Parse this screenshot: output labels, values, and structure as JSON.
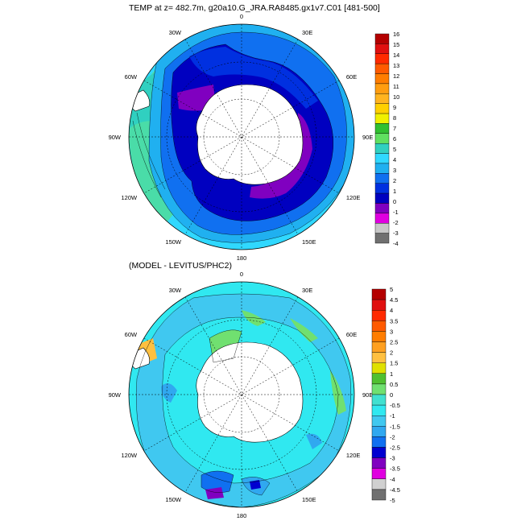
{
  "panels": [
    {
      "title": "TEMP at z= 482.7m, g20a10.G_JRA.RA8485.gx1v7.C01 [481-500]",
      "lon_labels": [
        "0",
        "30E",
        "60E",
        "90E",
        "120E",
        "150E",
        "180",
        "150W",
        "120W",
        "90W",
        "60W",
        "30W"
      ],
      "colorbar": {
        "levels": [
          "16",
          "15",
          "14",
          "13",
          "12",
          "11",
          "10",
          "9",
          "8",
          "7",
          "6",
          "5",
          "4",
          "3",
          "2",
          "1",
          "0",
          "-1",
          "-2",
          "-3",
          "-4"
        ],
        "colors": [
          "#b40000",
          "#e01010",
          "#ff2a00",
          "#ff5a00",
          "#ff7d00",
          "#ff9d10",
          "#ffb420",
          "#ffd000",
          "#f0f000",
          "#30c030",
          "#60e060",
          "#30d0c0",
          "#30d8ff",
          "#20b0f0",
          "#1070f0",
          "#0030e0",
          "#0000c0",
          "#8000c0",
          "#e000e0",
          "#c8c8c8",
          "#707070"
        ]
      }
    },
    {
      "title": "(MODEL - LEVITUS/PHC2)",
      "lon_labels": [
        "0",
        "30E",
        "60E",
        "90E",
        "120E",
        "150E",
        "180",
        "150W",
        "120W",
        "90W",
        "60W",
        "30W"
      ],
      "colorbar": {
        "levels": [
          "5",
          "4.5",
          "4",
          "3.5",
          "3",
          "2.5",
          "2",
          "1.5",
          "1",
          "0.5",
          "0",
          "-0.5",
          "-1",
          "-1.5",
          "-2",
          "-2.5",
          "-3",
          "-3.5",
          "-4",
          "-4.5",
          "-5"
        ],
        "colors": [
          "#b40000",
          "#e01010",
          "#ff2a00",
          "#ff5a00",
          "#ff7d00",
          "#ffa020",
          "#ffc040",
          "#e0e000",
          "#50c030",
          "#70e070",
          "#40e0d0",
          "#30e8f0",
          "#40c8f0",
          "#30a8f0",
          "#1070f0",
          "#0000d0",
          "#8000c0",
          "#e000e0",
          "#d0d0d0",
          "#707070"
        ]
      }
    }
  ]
}
